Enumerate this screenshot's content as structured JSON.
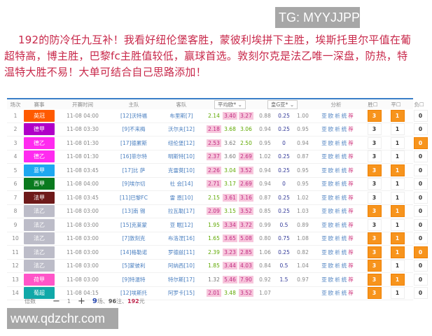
{
  "watermark_top": "TG: MYYJJPP",
  "watermark_bottom": "www.qdzchr.com",
  "intro": "192的防冷任九互补！我看好纽伦堡客胜，蒙彼利埃拼下主胜，埃斯托里尔平值在葡超特高，博主胜，巴黎fc主胜值较低，赢球首选。敦刻尔克是法乙唯一深盘，防热，特温特大胜不易！大单可结合自己思路添加！",
  "colors": {
    "accent": "#3a7fc8",
    "selected": "#f7941d",
    "text": "#c8284a"
  },
  "table": {
    "headers": {
      "no": "场次",
      "league": "赛事",
      "time": "开赛时间",
      "home": "主队",
      "away": "客队",
      "odds_select": "平均欧*",
      "handicap_select": "皇G亚*",
      "analysis": "分析",
      "win": "胜",
      "draw": "平",
      "loss": "负"
    },
    "analysis_links": [
      "亚",
      "欧",
      "析",
      "统",
      "荐"
    ],
    "rows": [
      {
        "no": "1",
        "league": "英冠",
        "color": "#ff5a00",
        "time": "11-08 04:00",
        "home": "[12]沃特福",
        "away": "布里斯[7]",
        "odds": [
          "2.14",
          "3.40",
          "3.27"
        ],
        "odds_style": [
          "g",
          "p",
          "p"
        ],
        "hc": [
          "0.88",
          "0.25",
          "1.00"
        ],
        "picks": [
          {
            "v": "3",
            "on": true
          },
          {
            "v": "1",
            "on": true
          },
          {
            "v": "0",
            "on": false
          }
        ]
      },
      {
        "no": "2",
        "league": "德甲",
        "color": "#b000c8",
        "time": "11-08 03:30",
        "home": "[9]不来梅",
        "away": "沃尔夫[12]",
        "odds": [
          "2.18",
          "3.68",
          "3.06"
        ],
        "odds_style": [
          "p",
          "g",
          "g"
        ],
        "hc": [
          "0.94",
          "0.25",
          "0.95"
        ],
        "picks": [
          {
            "v": "3",
            "on": false
          },
          {
            "v": "1",
            "on": false
          },
          {
            "v": "0",
            "on": false
          }
        ]
      },
      {
        "no": "3",
        "league": "德乙",
        "color": "#ff2af0",
        "time": "11-08 01:30",
        "home": "[17]德累斯",
        "away": "纽伦堡[12]",
        "odds": [
          "2.53",
          "3.62",
          "2.50"
        ],
        "odds_style": [
          "p",
          "n",
          "g"
        ],
        "hc": [
          "0.95",
          "0",
          "0.94"
        ],
        "picks": [
          {
            "v": "3",
            "on": false
          },
          {
            "v": "1",
            "on": false
          },
          {
            "v": "0",
            "on": true
          }
        ]
      },
      {
        "no": "4",
        "league": "德乙",
        "color": "#ff2af0",
        "time": "11-08 01:30",
        "home": "[16]菲尔特",
        "away": "明斯特[10]",
        "odds": [
          "2.37",
          "3.60",
          "2.69"
        ],
        "odds_style": [
          "p",
          "n",
          "p"
        ],
        "hc": [
          "1.02",
          "0.25",
          "0.87"
        ],
        "picks": [
          {
            "v": "3",
            "on": false
          },
          {
            "v": "1",
            "on": false
          },
          {
            "v": "0",
            "on": false
          }
        ]
      },
      {
        "no": "5",
        "league": "意甲",
        "color": "#1ea8f0",
        "time": "11-08 03:45",
        "home": "[17]比 萨",
        "away": "克雷莫[10]",
        "odds": [
          "2.26",
          "3.04",
          "3.52"
        ],
        "odds_style": [
          "p",
          "g",
          "p"
        ],
        "hc": [
          "0.94",
          "0.25",
          "0.95"
        ],
        "picks": [
          {
            "v": "3",
            "on": true
          },
          {
            "v": "1",
            "on": true
          },
          {
            "v": "0",
            "on": false
          }
        ]
      },
      {
        "no": "6",
        "league": "西甲",
        "color": "#0a7a1e",
        "time": "11-08 04:00",
        "home": "[9]埃尔切",
        "away": "社 会[14]",
        "odds": [
          "2.71",
          "3.17",
          "2.69"
        ],
        "odds_style": [
          "p",
          "g",
          "p"
        ],
        "hc": [
          "0.94",
          "0",
          "0.95"
        ],
        "picks": [
          {
            "v": "3",
            "on": false
          },
          {
            "v": "1",
            "on": false
          },
          {
            "v": "0",
            "on": false
          }
        ]
      },
      {
        "no": "7",
        "league": "法甲",
        "color": "#6e1a1a",
        "time": "11-08 03:45",
        "home": "[11]巴黎FC",
        "away": "雷 恩[10]",
        "odds": [
          "2.15",
          "3.61",
          "3.16"
        ],
        "odds_style": [
          "g",
          "p",
          "p"
        ],
        "hc": [
          "0.87",
          "0.25",
          "1.02"
        ],
        "picks": [
          {
            "v": "3",
            "on": false
          },
          {
            "v": "1",
            "on": false
          },
          {
            "v": "0",
            "on": false
          }
        ]
      },
      {
        "no": "8",
        "league": "法乙",
        "color": "#bcbcc8",
        "time": "11-08 03:00",
        "home": "[13]南 锡",
        "away": "拉瓦勒[17]",
        "odds": [
          "2.09",
          "3.15",
          "3.52"
        ],
        "odds_style": [
          "p",
          "g",
          "p"
        ],
        "hc": [
          "0.85",
          "0.25",
          "1.03"
        ],
        "picks": [
          {
            "v": "3",
            "on": true
          },
          {
            "v": "1",
            "on": true
          },
          {
            "v": "0",
            "on": false
          }
        ]
      },
      {
        "no": "9",
        "league": "法乙",
        "color": "#bcbcc8",
        "time": "11-08 03:00",
        "home": "[15]克莱蒙",
        "away": "亚 眠[12]",
        "odds": [
          "1.95",
          "3.34",
          "3.72"
        ],
        "odds_style": [
          "g",
          "p",
          "p"
        ],
        "hc": [
          "0.99",
          "0.5",
          "0.89"
        ],
        "picks": [
          {
            "v": "3",
            "on": false
          },
          {
            "v": "1",
            "on": false
          },
          {
            "v": "0",
            "on": false
          }
        ]
      },
      {
        "no": "10",
        "league": "法乙",
        "color": "#bcbcc8",
        "time": "11-08 03:00",
        "home": "[7]敦刻克",
        "away": "布洛涅[16]",
        "odds": [
          "1.65",
          "3.65",
          "5.08"
        ],
        "odds_style": [
          "g",
          "p",
          "p"
        ],
        "hc": [
          "0.80",
          "0.75",
          "1.08"
        ],
        "picks": [
          {
            "v": "3",
            "on": true
          },
          {
            "v": "1",
            "on": true
          },
          {
            "v": "0",
            "on": false
          }
        ]
      },
      {
        "no": "11",
        "league": "法乙",
        "color": "#bcbcc8",
        "time": "11-08 03:00",
        "home": "[14]格勒诺",
        "away": "罗德兹[11]",
        "odds": [
          "2.39",
          "3.23",
          "2.85"
        ],
        "odds_style": [
          "g",
          "p",
          "p"
        ],
        "hc": [
          "1.06",
          "0.25",
          "0.82"
        ],
        "picks": [
          {
            "v": "3",
            "on": true
          },
          {
            "v": "1",
            "on": true
          },
          {
            "v": "0",
            "on": true
          }
        ]
      },
      {
        "no": "12",
        "league": "法乙",
        "color": "#bcbcc8",
        "time": "11-08 03:00",
        "home": "[5]蒙彼利",
        "away": "阿纳西[10]",
        "odds": [
          "1.85",
          "3.44",
          "4.03"
        ],
        "odds_style": [
          "g",
          "p",
          "p"
        ],
        "hc": [
          "0.84",
          "0.5",
          "1.04"
        ],
        "picks": [
          {
            "v": "3",
            "on": true
          },
          {
            "v": "1",
            "on": false
          },
          {
            "v": "0",
            "on": false
          }
        ]
      },
      {
        "no": "13",
        "league": "荷甲",
        "color": "#ff55c8",
        "time": "11-08 03:00",
        "home": "[9]特温特",
        "away": "特尔斯[17]",
        "odds": [
          "1.32",
          "5.46",
          "7.90"
        ],
        "odds_style": [
          "n",
          "p",
          "p"
        ],
        "hc": [
          "0.92",
          "1.5",
          "0.97"
        ],
        "picks": [
          {
            "v": "3",
            "on": true
          },
          {
            "v": "1",
            "on": true
          },
          {
            "v": "0",
            "on": false
          }
        ]
      },
      {
        "no": "14",
        "league": "葡超",
        "color": "#10a8a8",
        "time": "11-08 04:15",
        "home": "[12]埃斯托",
        "away": "阿罗卡[15]",
        "odds": [
          "2.01",
          "3.48",
          "3.52"
        ],
        "odds_style": [
          "p",
          "g",
          "p"
        ],
        "hc": [
          "1.07",
          "",
          "",
          ""
        ],
        "picks": [
          {
            "v": "3",
            "on": true
          },
          {
            "v": "1",
            "on": false
          },
          {
            "v": "0",
            "on": false
          }
        ]
      }
    ]
  },
  "footer": {
    "multiplier_label": "倍数",
    "minus": "−",
    "multiplier": "1",
    "plus": "+",
    "matches": "9",
    "matches_unit": "场、",
    "bets": "96",
    "bets_unit": "注、",
    "amount": "192",
    "amount_unit": "元"
  }
}
